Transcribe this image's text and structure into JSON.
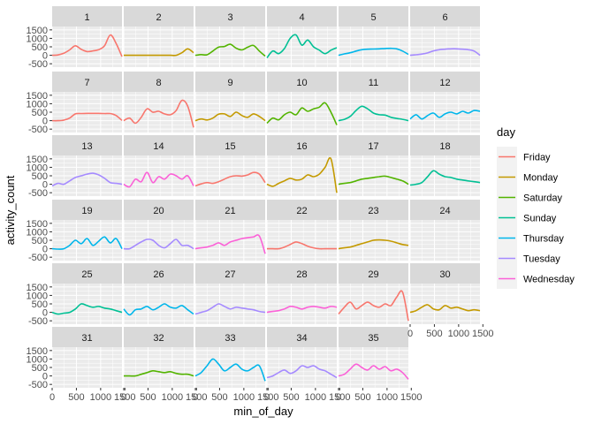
{
  "chart_data": {
    "type": "line",
    "xlabel": "min_of_day",
    "ylabel": "activity_count",
    "xlim": [
      0,
      1440
    ],
    "ylim": [
      -700,
      1700
    ],
    "x_ticks": [
      "0",
      "500",
      "1000",
      "1500"
    ],
    "y_ticks": [
      "-500",
      "0",
      "500",
      "1000",
      "1500"
    ],
    "legend": {
      "title": "day",
      "position": "right",
      "entries": [
        "Friday",
        "Monday",
        "Saturday",
        "Sunday",
        "Thursday",
        "Tuesday",
        "Wednesday"
      ]
    },
    "colors": {
      "Friday": "#F8766D",
      "Monday": "#C49A00",
      "Saturday": "#53B400",
      "Sunday": "#00C094",
      "Thursday": "#00B6EB",
      "Tuesday": "#A58AFF",
      "Wednesday": "#FB61D7"
    },
    "x": [
      0,
      120,
      240,
      360,
      480,
      600,
      720,
      840,
      960,
      1080,
      1200,
      1320,
      1440
    ],
    "panels": [
      {
        "id": "1",
        "day": "Friday",
        "y": [
          0,
          20,
          120,
          320,
          560,
          350,
          220,
          260,
          330,
          560,
          1200,
          700,
          -80
        ]
      },
      {
        "id": "2",
        "day": "Monday",
        "y": [
          0,
          0,
          0,
          0,
          0,
          0,
          0,
          0,
          0,
          0,
          150,
          380,
          150
        ]
      },
      {
        "id": "3",
        "day": "Saturday",
        "y": [
          0,
          40,
          30,
          250,
          480,
          520,
          650,
          420,
          320,
          480,
          580,
          250,
          -50
        ]
      },
      {
        "id": "4",
        "day": "Sunday",
        "y": [
          -150,
          250,
          100,
          400,
          1000,
          1200,
          600,
          900,
          500,
          300,
          100,
          300,
          450
        ]
      },
      {
        "id": "5",
        "day": "Thursday",
        "y": [
          0,
          80,
          150,
          250,
          330,
          360,
          370,
          380,
          400,
          410,
          380,
          250,
          50
        ]
      },
      {
        "id": "6",
        "day": "Tuesday",
        "y": [
          0,
          30,
          70,
          140,
          260,
          330,
          360,
          380,
          380,
          360,
          330,
          250,
          0
        ]
      },
      {
        "id": "7",
        "day": "Friday",
        "y": [
          0,
          0,
          30,
          150,
          400,
          420,
          430,
          430,
          430,
          420,
          420,
          300,
          10
        ]
      },
      {
        "id": "8",
        "day": "Friday",
        "y": [
          0,
          150,
          -150,
          200,
          700,
          500,
          550,
          400,
          350,
          600,
          1200,
          850,
          -400
        ]
      },
      {
        "id": "9",
        "day": "Monday",
        "y": [
          0,
          100,
          40,
          150,
          380,
          400,
          250,
          500,
          300,
          200,
          400,
          250,
          0
        ]
      },
      {
        "id": "10",
        "day": "Saturday",
        "y": [
          -150,
          150,
          50,
          350,
          500,
          350,
          750,
          550,
          700,
          800,
          1050,
          500,
          -250
        ]
      },
      {
        "id": "11",
        "day": "Sunday",
        "y": [
          0,
          80,
          250,
          600,
          850,
          700,
          450,
          350,
          330,
          200,
          130,
          80,
          0
        ]
      },
      {
        "id": "12",
        "day": "Thursday",
        "y": [
          100,
          350,
          100,
          300,
          450,
          200,
          400,
          500,
          400,
          550,
          450,
          600,
          550
        ]
      },
      {
        "id": "13",
        "day": "Tuesday",
        "y": [
          -100,
          50,
          0,
          200,
          400,
          500,
          600,
          650,
          550,
          350,
          100,
          50,
          0
        ]
      },
      {
        "id": "14",
        "day": "Wednesday",
        "y": [
          0,
          -150,
          300,
          150,
          700,
          100,
          450,
          300,
          600,
          500,
          300,
          500,
          -100
        ]
      },
      {
        "id": "15",
        "day": "Friday",
        "y": [
          -100,
          20,
          100,
          50,
          150,
          300,
          450,
          500,
          480,
          550,
          700,
          600,
          100
        ]
      },
      {
        "id": "16",
        "day": "Monday",
        "y": [
          0,
          -120,
          50,
          200,
          350,
          250,
          300,
          550,
          450,
          600,
          1000,
          1500,
          -500
        ]
      },
      {
        "id": "17",
        "day": "Saturday",
        "y": [
          0,
          50,
          100,
          200,
          300,
          350,
          400,
          450,
          480,
          400,
          300,
          200,
          0
        ]
      },
      {
        "id": "18",
        "day": "Sunday",
        "y": [
          -50,
          0,
          100,
          450,
          800,
          600,
          450,
          400,
          300,
          250,
          200,
          150,
          100
        ]
      },
      {
        "id": "19",
        "day": "Thursday",
        "y": [
          0,
          -20,
          0,
          200,
          500,
          300,
          600,
          200,
          450,
          700,
          350,
          600,
          0
        ]
      },
      {
        "id": "20",
        "day": "Tuesday",
        "y": [
          0,
          0,
          200,
          400,
          550,
          500,
          200,
          50,
          300,
          550,
          200,
          200,
          0
        ]
      },
      {
        "id": "21",
        "day": "Wednesday",
        "y": [
          0,
          50,
          100,
          200,
          350,
          200,
          400,
          500,
          600,
          650,
          700,
          750,
          -300
        ]
      },
      {
        "id": "22",
        "day": "Friday",
        "y": [
          0,
          0,
          0,
          100,
          250,
          400,
          300,
          150,
          50,
          0,
          0,
          0,
          0
        ]
      },
      {
        "id": "23",
        "day": "Monday",
        "y": [
          0,
          50,
          100,
          200,
          300,
          400,
          500,
          520,
          500,
          450,
          350,
          250,
          200
        ]
      },
      {
        "id": "25",
        "day": "Sunday",
        "y": [
          0,
          -100,
          -50,
          0,
          200,
          500,
          400,
          300,
          350,
          250,
          200,
          100,
          0
        ]
      },
      {
        "id": "26",
        "day": "Thursday",
        "y": [
          200,
          -150,
          150,
          200,
          350,
          150,
          300,
          500,
          300,
          250,
          400,
          150,
          -100
        ]
      },
      {
        "id": "27",
        "day": "Tuesday",
        "y": [
          -100,
          0,
          100,
          300,
          500,
          350,
          200,
          300,
          250,
          200,
          150,
          50,
          0
        ]
      },
      {
        "id": "28",
        "day": "Wednesday",
        "y": [
          0,
          50,
          100,
          200,
          350,
          300,
          200,
          300,
          350,
          300,
          250,
          350,
          300
        ]
      },
      {
        "id": "29",
        "day": "Friday",
        "y": [
          -100,
          300,
          600,
          200,
          400,
          600,
          400,
          300,
          500,
          400,
          900,
          1200,
          -500
        ]
      },
      {
        "id": "30",
        "day": "Monday",
        "y": [
          0,
          100,
          300,
          450,
          200,
          150,
          400,
          250,
          300,
          200,
          100,
          150,
          100
        ]
      },
      {
        "id": "32",
        "day": "Saturday",
        "y": [
          0,
          0,
          0,
          100,
          200,
          300,
          250,
          200,
          250,
          150,
          100,
          100,
          0
        ]
      },
      {
        "id": "33",
        "day": "Thursday",
        "y": [
          0,
          200,
          600,
          1000,
          700,
          300,
          500,
          700,
          400,
          300,
          500,
          600,
          -300
        ]
      },
      {
        "id": "34",
        "day": "Tuesday",
        "y": [
          -100,
          0,
          200,
          350,
          150,
          300,
          600,
          500,
          600,
          400,
          300,
          100,
          -100
        ]
      },
      {
        "id": "35",
        "day": "Wednesday",
        "y": [
          0,
          100,
          400,
          700,
          500,
          350,
          600,
          400,
          550,
          300,
          400,
          200,
          -200
        ]
      },
      {
        "id": "24",
        "day": null,
        "y": []
      },
      {
        "id": "31",
        "day": null,
        "y": []
      }
    ]
  }
}
